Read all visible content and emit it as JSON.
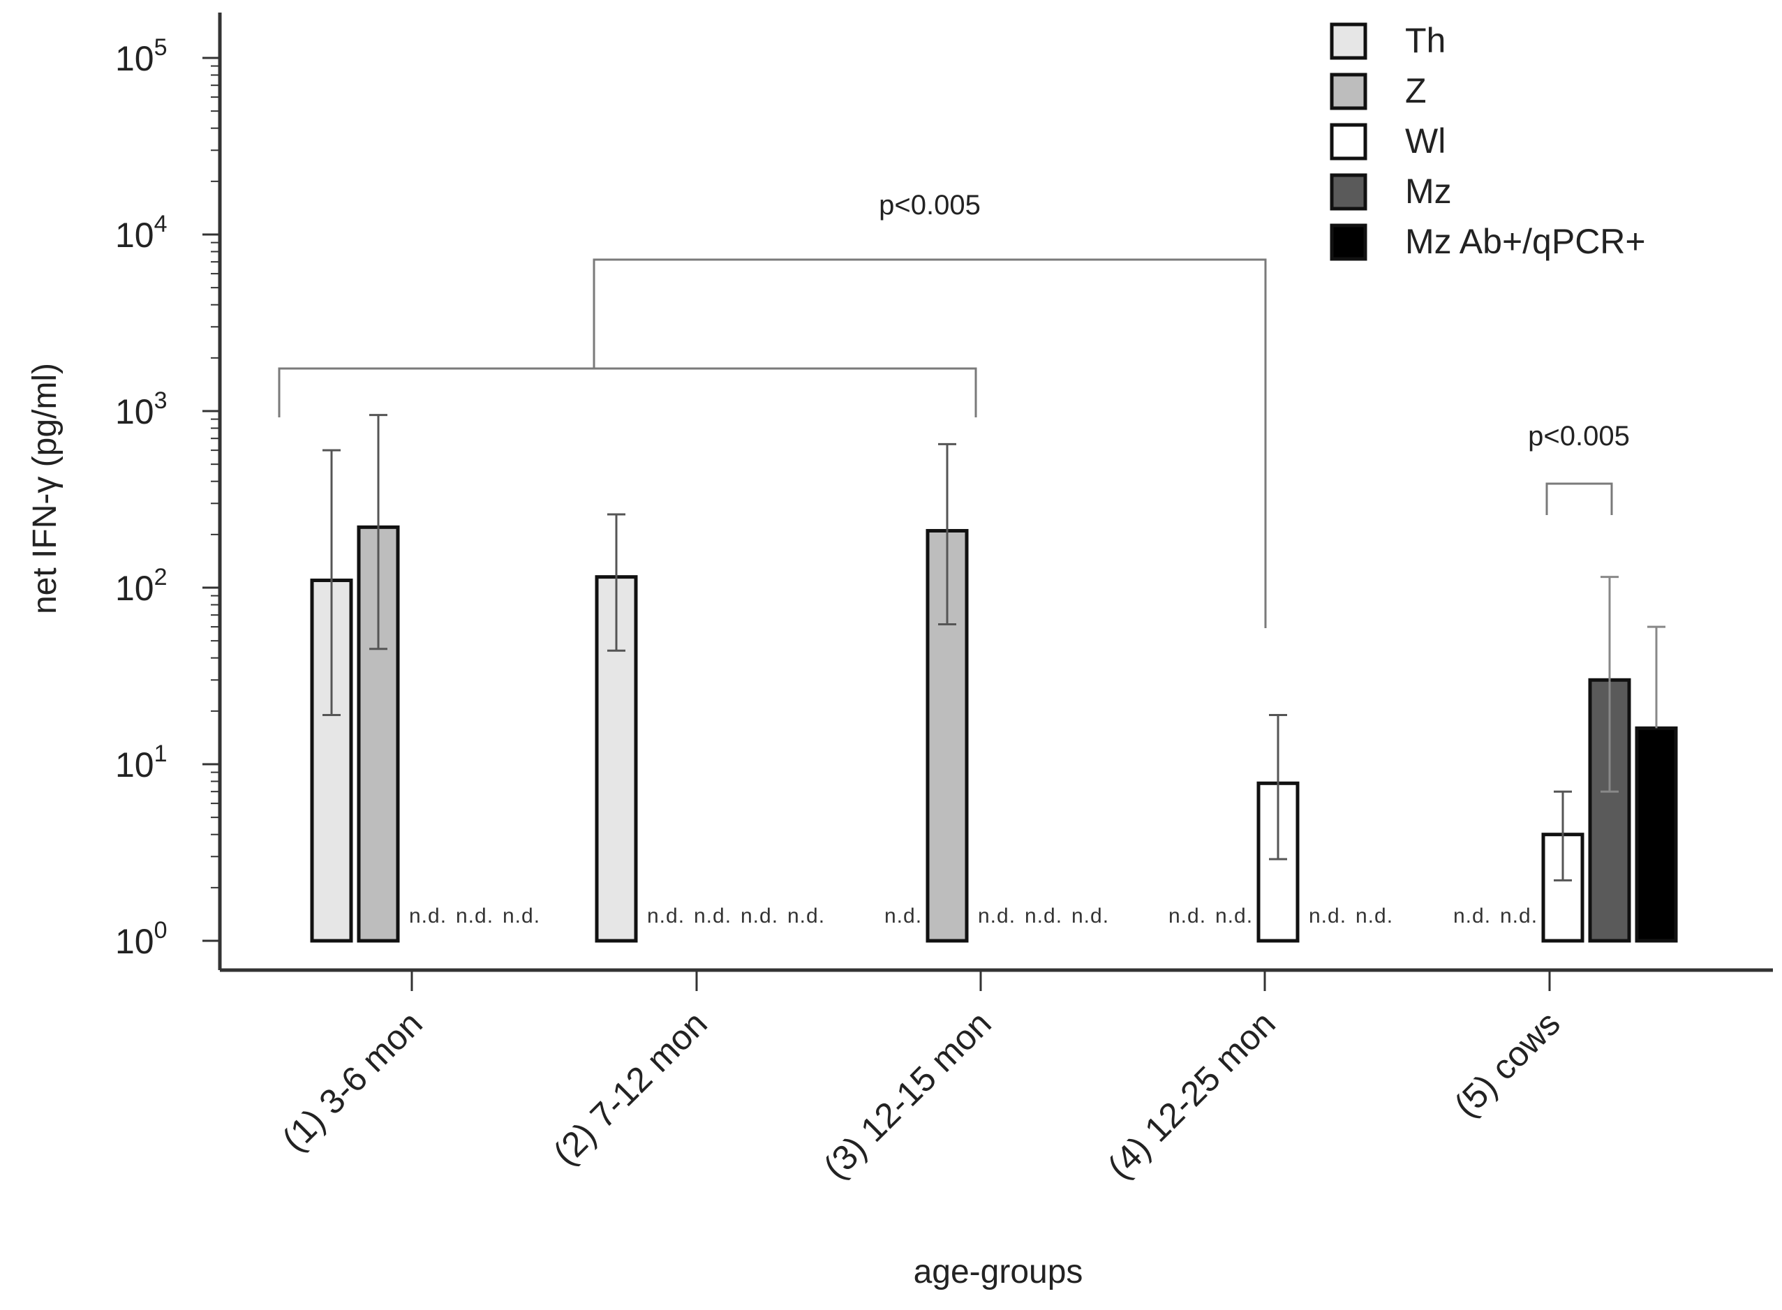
{
  "chart_data": {
    "type": "bar",
    "scale": "log",
    "title": "",
    "xlabel": "age-groups",
    "ylabel": "net IFN-γ  (pg/ml)",
    "ylim": [
      1,
      100000
    ],
    "y_ticks": [
      {
        "base": "10",
        "exp": "0"
      },
      {
        "base": "10",
        "exp": "1"
      },
      {
        "base": "10",
        "exp": "2"
      },
      {
        "base": "10",
        "exp": "3"
      },
      {
        "base": "10",
        "exp": "4"
      },
      {
        "base": "10",
        "exp": "5"
      }
    ],
    "categories": [
      "(1) 3-6 mon",
      "(2) 7-12 mon",
      "(3) 12-15 mon",
      "(4) 12-25 mon",
      "(5) cows"
    ],
    "nd_text": "n.d.",
    "series": [
      {
        "name": "Th",
        "color": "#e6e6e6",
        "values": [
          110,
          115,
          null,
          null,
          null
        ],
        "err_low": [
          19,
          44,
          null,
          null,
          null
        ],
        "err_high": [
          600,
          260,
          null,
          null,
          null
        ]
      },
      {
        "name": "Z",
        "color": "#bdbdbd",
        "values": [
          220,
          null,
          210,
          null,
          null
        ],
        "err_low": [
          45,
          null,
          62,
          null,
          null
        ],
        "err_high": [
          950,
          null,
          650,
          null,
          null
        ]
      },
      {
        "name": "Wl",
        "color": "#ffffff",
        "values": [
          null,
          null,
          null,
          7.8,
          4.0
        ],
        "err_low": [
          null,
          null,
          null,
          2.9,
          2.2
        ],
        "err_high": [
          null,
          null,
          null,
          19,
          7
        ]
      },
      {
        "name": "Mz",
        "color": "#5a5a5a",
        "values": [
          null,
          null,
          null,
          null,
          30
        ],
        "err_low": [
          null,
          null,
          null,
          null,
          7
        ],
        "err_high": [
          null,
          null,
          null,
          null,
          115
        ]
      },
      {
        "name": "Mz Ab+/qPCR+",
        "color": "#000000",
        "values": [
          null,
          null,
          null,
          null,
          16
        ],
        "err_low": [
          null,
          null,
          null,
          null,
          null
        ],
        "err_high": [
          null,
          null,
          null,
          null,
          60
        ]
      }
    ],
    "annotations": [
      {
        "text": "p<0.005",
        "type": "group-comparison",
        "between": [
          "(1) 3-6 mon, (2) 7-12 mon, (3) 12-15 mon",
          "(4) 12-25 mon"
        ]
      },
      {
        "text": "p<0.005",
        "type": "within-group",
        "between": [
          "Wl",
          "Mz"
        ],
        "group": "(5) cows"
      }
    ],
    "legend_position": "top-right"
  }
}
